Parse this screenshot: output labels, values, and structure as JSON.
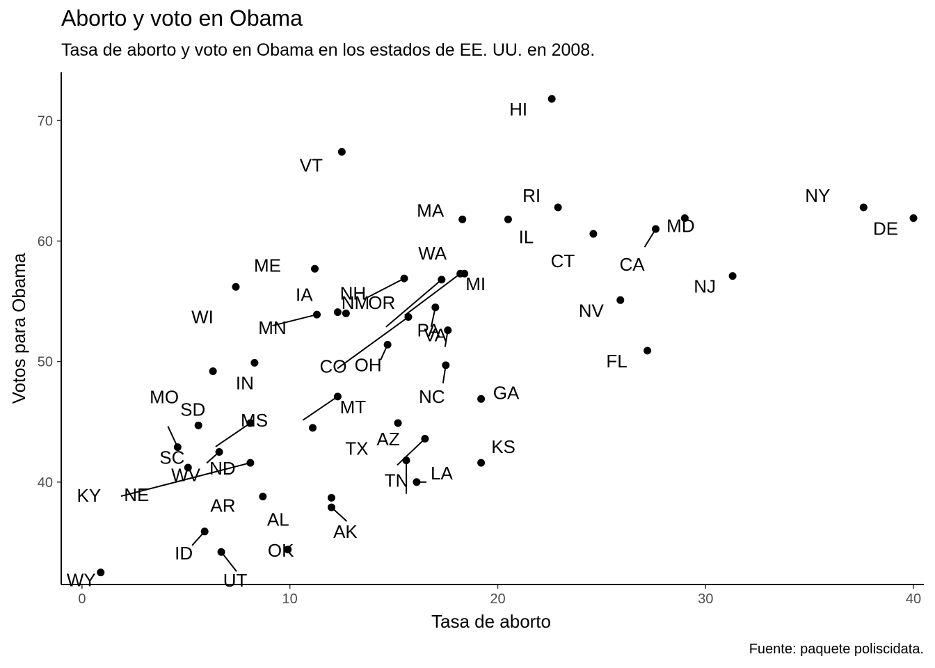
{
  "chart_data": {
    "type": "scatter",
    "title": "Aborto y voto en Obama",
    "subtitle": "Tasa de aborto y voto en Obama en los estados de EE. UU. en 2008.",
    "caption": "Fuente: paquete poliscidata.",
    "xlabel": "Tasa de aborto",
    "ylabel": "Votos para Obama",
    "xlim": [
      -1,
      40.5
    ],
    "ylim": [
      31.5,
      74
    ],
    "x_ticks": [
      0,
      10,
      20,
      30,
      40
    ],
    "y_ticks": [
      40,
      50,
      60,
      70
    ],
    "grid": false,
    "points": [
      {
        "label": "HI",
        "x": 22.6,
        "y": 71.8
      },
      {
        "label": "VT",
        "x": 12.5,
        "y": 67.4
      },
      {
        "label": "RI",
        "x": 22.9,
        "y": 62.8
      },
      {
        "label": "NY",
        "x": 37.6,
        "y": 62.8
      },
      {
        "label": "DE",
        "x": 40.0,
        "y": 61.9
      },
      {
        "label": "MD",
        "x": 29.0,
        "y": 61.9
      },
      {
        "label": "MA",
        "x": 18.3,
        "y": 61.8
      },
      {
        "label": "IL",
        "x": 20.5,
        "y": 61.8
      },
      {
        "label": "CA",
        "x": 27.6,
        "y": 61.0
      },
      {
        "label": "CT",
        "x": 24.6,
        "y": 60.6
      },
      {
        "label": "ME",
        "x": 11.2,
        "y": 57.7
      },
      {
        "label": "WA",
        "x": 18.2,
        "y": 57.3
      },
      {
        "label": "MI",
        "x": 18.4,
        "y": 57.3
      },
      {
        "label": "NJ",
        "x": 31.3,
        "y": 57.1
      },
      {
        "label": "OR",
        "x": 17.3,
        "y": 56.8
      },
      {
        "label": "WI",
        "x": 7.4,
        "y": 56.2
      },
      {
        "label": "NM",
        "x": 15.5,
        "y": 56.9
      },
      {
        "label": "NV",
        "x": 25.9,
        "y": 55.1
      },
      {
        "label": "PA",
        "x": 17.0,
        "y": 54.5
      },
      {
        "label": "NH",
        "x": 12.3,
        "y": 54.1
      },
      {
        "label": "IA",
        "x": 12.7,
        "y": 54.0
      },
      {
        "label": "MN",
        "x": 11.3,
        "y": 53.9
      },
      {
        "label": "CO",
        "x": 15.7,
        "y": 53.7
      },
      {
        "label": "VA",
        "x": 17.6,
        "y": 52.6
      },
      {
        "label": "OH",
        "x": 14.7,
        "y": 51.4
      },
      {
        "label": "FL",
        "x": 27.2,
        "y": 50.9
      },
      {
        "label": "IN",
        "x": 8.3,
        "y": 49.9
      },
      {
        "label": "NC",
        "x": 17.5,
        "y": 49.7
      },
      {
        "label": "MO",
        "x": 6.3,
        "y": 49.2
      },
      {
        "label": "GA",
        "x": 19.2,
        "y": 46.9
      },
      {
        "label": "MT",
        "x": 12.3,
        "y": 47.1
      },
      {
        "label": "SD",
        "x": 5.6,
        "y": 44.7
      },
      {
        "label": "AZ",
        "x": 15.2,
        "y": 44.9
      },
      {
        "label": "ND",
        "x": 8.1,
        "y": 44.9
      },
      {
        "label": "SC",
        "x": 4.6,
        "y": 42.9
      },
      {
        "label": "MS",
        "x": 11.1,
        "y": 44.5
      },
      {
        "label": "TX",
        "x": 16.5,
        "y": 43.6
      },
      {
        "label": "WV",
        "x": 6.6,
        "y": 42.5
      },
      {
        "label": "TN",
        "x": 15.6,
        "y": 41.8
      },
      {
        "label": "KY",
        "x": 8.1,
        "y": 41.6
      },
      {
        "label": "KS",
        "x": 19.2,
        "y": 41.6
      },
      {
        "label": "LA",
        "x": 16.1,
        "y": 40.0
      },
      {
        "label": "NE",
        "x": 5.1,
        "y": 41.2
      },
      {
        "label": "AL",
        "x": 8.7,
        "y": 38.8
      },
      {
        "label": "AR",
        "x": 12.0,
        "y": 38.7
      },
      {
        "label": "AK",
        "x": 12.0,
        "y": 37.9
      },
      {
        "label": "ID",
        "x": 5.9,
        "y": 35.9
      },
      {
        "label": "OK",
        "x": 9.9,
        "y": 34.4
      },
      {
        "label": "UT",
        "x": 6.7,
        "y": 34.2
      },
      {
        "label": "WY",
        "x": 0.9,
        "y": 32.5
      }
    ]
  }
}
